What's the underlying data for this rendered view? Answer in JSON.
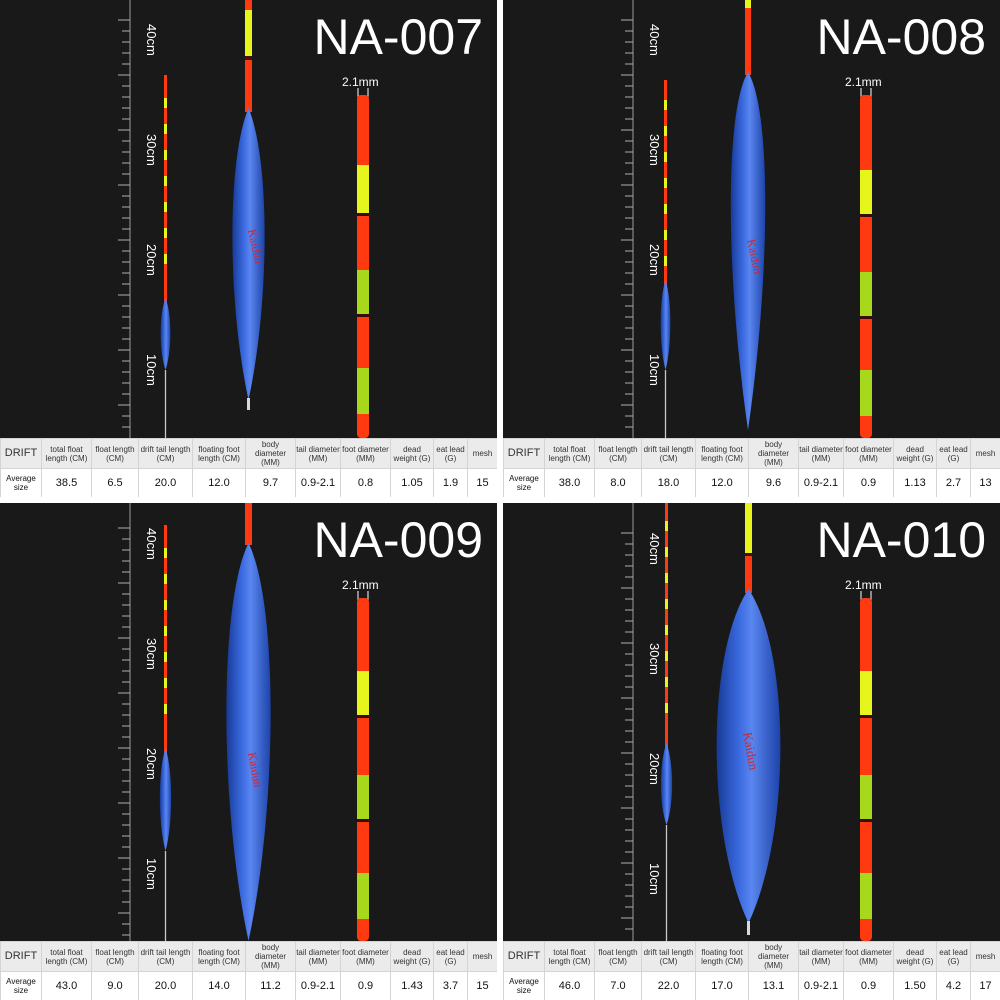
{
  "ruler_labels": [
    "40cm",
    "30cm",
    "20cm",
    "10cm"
  ],
  "tail_width_label": "2.1mm",
  "table_headers": {
    "drift": "DRIFT",
    "row_label": "Average size",
    "columns": [
      "total float length (CM)",
      "float length (CM)",
      "drift tail length (CM)",
      "floating foot length (CM)",
      "body diameter (MM)",
      "tail diameter (MM)",
      "foot diameter (MM)",
      "dead weight (G)",
      "eat lead (G)",
      "mesh"
    ]
  },
  "panels": [
    {
      "model": "NA-007",
      "values": [
        "38.5",
        "6.5",
        "20.0",
        "12.0",
        "9.7",
        "0.9-2.1",
        "0.8",
        "1.05",
        "1.9",
        "15"
      ]
    },
    {
      "model": "NA-008",
      "values": [
        "38.0",
        "8.0",
        "18.0",
        "12.0",
        "9.6",
        "0.9-2.1",
        "0.9",
        "1.13",
        "2.7",
        "13"
      ]
    },
    {
      "model": "NA-009",
      "values": [
        "43.0",
        "9.0",
        "20.0",
        "14.0",
        "11.2",
        "0.9-2.1",
        "0.9",
        "1.43",
        "3.7",
        "15"
      ]
    },
    {
      "model": "NA-010",
      "values": [
        "46.0",
        "7.0",
        "22.0",
        "17.0",
        "13.1",
        "0.9-2.1",
        "0.9",
        "1.50",
        "4.2",
        "17"
      ]
    }
  ],
  "colors": {
    "background": "#191919",
    "float_body": "#2b55c9",
    "tail_red": "#ff3a10",
    "tail_yellow": "#e6f51c"
  }
}
